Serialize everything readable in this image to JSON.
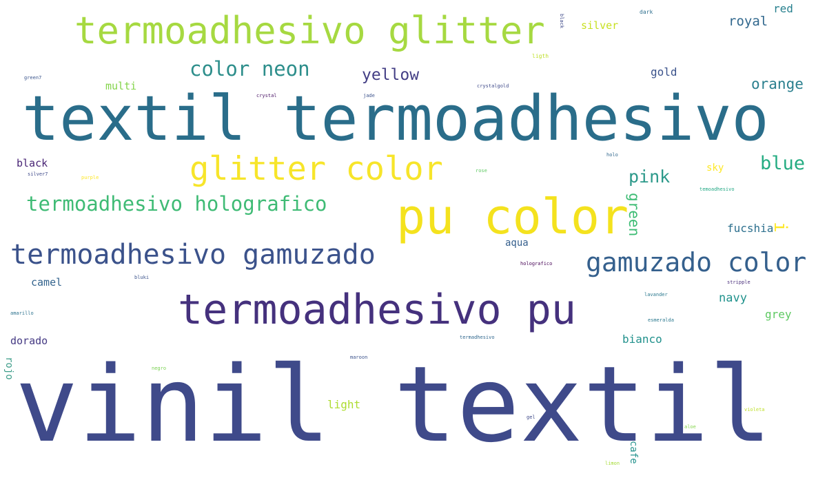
{
  "words": [
    {
      "text": "vinil textil",
      "color": "#3f4a8a"
    },
    {
      "text": "textil termoadhesivo",
      "color": "#2a6d8a"
    },
    {
      "text": "termoadhesivo glitter",
      "color": "#a6d941"
    },
    {
      "text": "pu color",
      "color": "#f4e21e"
    },
    {
      "text": "termoadhesivo pu",
      "color": "#45317d"
    },
    {
      "text": "glitter color",
      "color": "#f7e52a"
    },
    {
      "text": "termoadhesivo gamuzado",
      "color": "#3b528b"
    },
    {
      "text": "gamuzado color",
      "color": "#35608d"
    },
    {
      "text": "termoadhesivo holografico",
      "color": "#3fbb75"
    },
    {
      "text": "color neon",
      "color": "#2d8e8b"
    },
    {
      "text": "yellow",
      "color": "#433e85"
    },
    {
      "text": "blue",
      "color": "#25ac82"
    },
    {
      "text": "pink",
      "color": "#2c998a"
    },
    {
      "text": "orange",
      "color": "#2a7f8e"
    },
    {
      "text": "green",
      "color": "#3dbc74"
    },
    {
      "text": "royal",
      "color": "#31688e"
    },
    {
      "text": "red",
      "color": "#27808e"
    },
    {
      "text": "silver",
      "color": "#c7e020"
    },
    {
      "text": "gold",
      "color": "#3a528b"
    },
    {
      "text": "black",
      "color": "#482475"
    },
    {
      "text": "multi",
      "color": "#84d44b"
    },
    {
      "text": "fucshia",
      "color": "#2d708e"
    },
    {
      "text": "camel",
      "color": "#33638d"
    },
    {
      "text": "navy",
      "color": "#20928c"
    },
    {
      "text": "grey",
      "color": "#5ec962"
    },
    {
      "text": "bianco",
      "color": "#21918c"
    },
    {
      "text": "dorado",
      "color": "#443983"
    },
    {
      "text": "light",
      "color": "#addc30"
    },
    {
      "text": "aqua",
      "color": "#355f8d"
    },
    {
      "text": "sky",
      "color": "#fde725"
    },
    {
      "text": "cafe",
      "color": "#21918c"
    },
    {
      "text": "rojo",
      "color": "#3b9c88"
    },
    {
      "text": "dark",
      "color": "#2e6f8e"
    },
    {
      "text": "black",
      "color": "#3e4a89"
    },
    {
      "text": "ligth",
      "color": "#bddf26"
    },
    {
      "text": "green7",
      "color": "#3a548c"
    },
    {
      "text": "crystal",
      "color": "#471063"
    },
    {
      "text": "jade",
      "color": "#3b528b"
    },
    {
      "text": "crystalgold",
      "color": "#3e4989"
    },
    {
      "text": "silver7",
      "color": "#3e4989"
    },
    {
      "text": "purple",
      "color": "#fde725"
    },
    {
      "text": "rose",
      "color": "#5ec962"
    },
    {
      "text": "holo",
      "color": "#31688e"
    },
    {
      "text": "temoadhesivo",
      "color": "#22a884"
    },
    {
      "text": "i",
      "color": "#fde725"
    },
    {
      "text": "holografico",
      "color": "#440154"
    },
    {
      "text": "bluki",
      "color": "#3b528b"
    },
    {
      "text": "stripple",
      "color": "#472c7a"
    },
    {
      "text": "lavander",
      "color": "#2a788e"
    },
    {
      "text": "amarillo",
      "color": "#2c728e"
    },
    {
      "text": "esmeralda",
      "color": "#2a788e"
    },
    {
      "text": "termadhesivo",
      "color": "#31688e"
    },
    {
      "text": "maroon",
      "color": "#3b528b"
    },
    {
      "text": "negro",
      "color": "#7ad151"
    },
    {
      "text": "gel",
      "color": "#3e4989"
    },
    {
      "text": "violeta",
      "color": "#bddf26"
    },
    {
      "text": "aloe",
      "color": "#84d44b"
    },
    {
      "text": "limon",
      "color": "#a5db36"
    }
  ]
}
